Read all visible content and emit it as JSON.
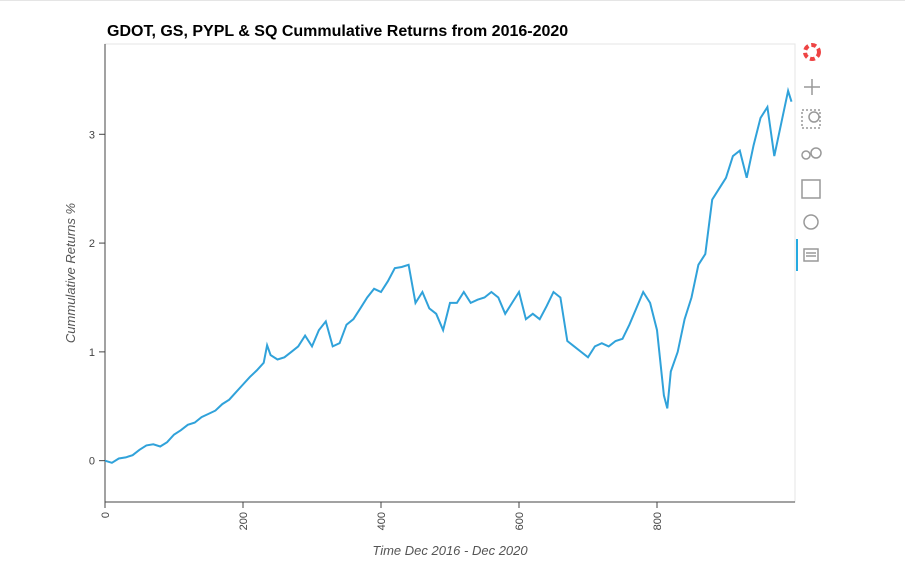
{
  "chart_data": {
    "type": "line",
    "title": "GDOT, GS, PYPL & SQ Cummulative Returns from 2016-2020",
    "x_label": "Time Dec 2016 - Dec 2020",
    "y_label": "Cummulative Returns %",
    "color": "#30a2da",
    "x": [
      0,
      10,
      20,
      30,
      40,
      50,
      60,
      70,
      80,
      90,
      100,
      110,
      120,
      130,
      140,
      150,
      160,
      170,
      180,
      190,
      200,
      210,
      220,
      230,
      235,
      240,
      250,
      260,
      270,
      280,
      290,
      300,
      310,
      320,
      330,
      340,
      350,
      360,
      370,
      380,
      390,
      400,
      410,
      420,
      430,
      440,
      450,
      460,
      470,
      480,
      490,
      500,
      510,
      520,
      530,
      540,
      550,
      560,
      570,
      580,
      590,
      600,
      610,
      620,
      630,
      640,
      650,
      660,
      670,
      680,
      690,
      700,
      710,
      720,
      730,
      740,
      750,
      760,
      770,
      780,
      790,
      800,
      810,
      815,
      820,
      830,
      840,
      850,
      860,
      870,
      880,
      890,
      900,
      910,
      920,
      930,
      940,
      950,
      960,
      970,
      980,
      990,
      995
    ],
    "values": [
      0,
      -0.02,
      0.02,
      0.03,
      0.05,
      0.1,
      0.14,
      0.15,
      0.13,
      0.17,
      0.24,
      0.28,
      0.33,
      0.35,
      0.4,
      0.43,
      0.46,
      0.52,
      0.56,
      0.63,
      0.7,
      0.77,
      0.83,
      0.9,
      1.06,
      0.97,
      0.93,
      0.95,
      1.0,
      1.05,
      1.15,
      1.05,
      1.2,
      1.28,
      1.05,
      1.08,
      1.25,
      1.3,
      1.4,
      1.5,
      1.58,
      1.55,
      1.65,
      1.77,
      1.78,
      1.8,
      1.45,
      1.55,
      1.4,
      1.35,
      1.2,
      1.45,
      1.45,
      1.55,
      1.45,
      1.48,
      1.5,
      1.55,
      1.5,
      1.35,
      1.45,
      1.55,
      1.3,
      1.35,
      1.3,
      1.42,
      1.55,
      1.5,
      1.1,
      1.05,
      1.0,
      0.95,
      1.05,
      1.08,
      1.05,
      1.1,
      1.12,
      1.25,
      1.4,
      1.55,
      1.45,
      1.2,
      0.6,
      0.48,
      0.82,
      1.0,
      1.3,
      1.5,
      1.8,
      1.9,
      2.4,
      2.5,
      2.6,
      2.8,
      2.85,
      2.6,
      2.9,
      3.15,
      3.25,
      2.8,
      3.1,
      3.4,
      3.3
    ],
    "xlim": [
      0,
      1000
    ],
    "ylim": [
      -0.38,
      3.83
    ],
    "xticks": [
      0,
      200,
      400,
      600,
      800
    ],
    "yticks": [
      0,
      1,
      2,
      3
    ]
  }
}
